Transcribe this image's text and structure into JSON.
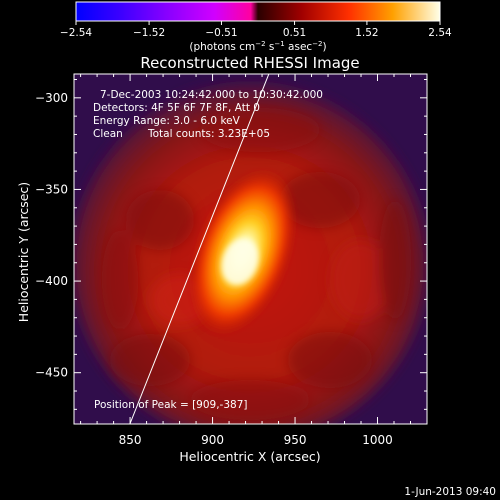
{
  "chart_data": {
    "type": "heatmap",
    "title": "Reconstructed RHESSI Image",
    "xlabel": "Heliocentric X (arcsec)",
    "ylabel": "Heliocentric Y (arcsec)",
    "xlim": [
      816,
      1030
    ],
    "ylim": [
      -478,
      -287
    ],
    "x_ticks": [
      850,
      900,
      950,
      1000
    ],
    "y_ticks": [
      -300,
      -350,
      -400,
      -450
    ],
    "colorbar": {
      "tick_labels": [
        "−2.54",
        "−1.52",
        "−0.51",
        "0.51",
        "1.52",
        "2.54"
      ],
      "tick_values": [
        -2.54,
        -1.52,
        -0.51,
        0.51,
        1.52,
        2.54
      ],
      "units_prefix": "(photons cm",
      "units_sup1": "−2",
      "units_mid": " s",
      "units_sup2": "−1",
      "units_mid2": " asec",
      "units_sup3": "−2",
      "units_suffix": ")",
      "colormap": "rainbow-hot"
    },
    "annotations": {
      "time_range": "7-Dec-2003 10:24:42.000 to 10:30:42.000",
      "detectors": "Detectors: 4F 5F 6F 7F 8F, Att 0",
      "energy": "Energy Range: 3.0 - 6.0 keV",
      "method": "Clean",
      "total_counts": "Total counts: 3.23E+05",
      "peak": "Position of Peak = [909,-387]"
    },
    "peak": [
      909,
      -387
    ],
    "limb_line": [
      [
        849,
        -480
      ],
      [
        935,
        -285
      ]
    ],
    "colors": {
      "background": "#000000",
      "map_background": "#3a0f52",
      "annotation_text": "#ffffff"
    }
  },
  "footer": {
    "timestamp": "1-Jun-2013 09:40"
  }
}
